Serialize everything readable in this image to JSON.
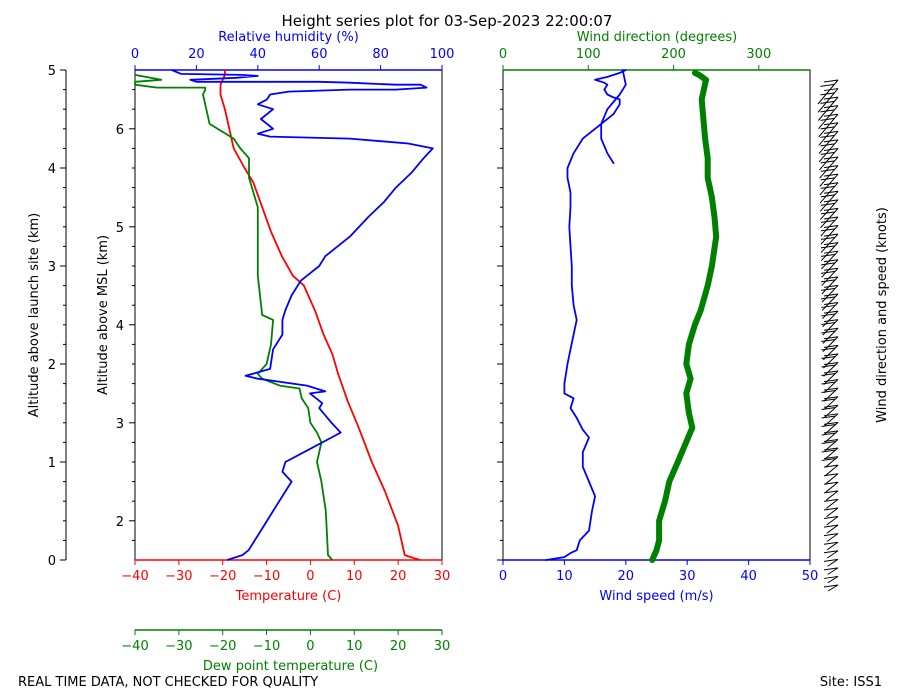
{
  "title": "Height series plot for 03-Sep-2023 22:00:07",
  "footer": {
    "notice": "REAL TIME DATA, NOT CHECKED FOR QUALITY",
    "site": "Site: ISS1"
  },
  "colors": {
    "temperature": "#ff0000",
    "dewpoint": "#008000",
    "humidity": "#0000ff",
    "wind_speed": "#0000ff",
    "wind_dir": "#008000",
    "axis": "#000000",
    "barbs": "#000000"
  },
  "chart_data": [
    {
      "type": "line",
      "name": "thermo-panel",
      "left_axis": {
        "label": "Altitude above launch site (km)",
        "ticks": [
          "0",
          "1",
          "2",
          "3",
          "4",
          "5"
        ],
        "range": [
          0,
          5
        ]
      },
      "msl_axis": {
        "label": "Altitude above MSL (km)",
        "ticks": [
          "2",
          "3",
          "4",
          "5",
          "6"
        ],
        "range": [
          1.6,
          6.6
        ]
      },
      "temp_axis": {
        "label": "Temperature (C)",
        "ticks": [
          "−40",
          "−30",
          "−20",
          "−10",
          "0",
          "10",
          "20",
          "30"
        ],
        "range": [
          -40,
          30
        ]
      },
      "dew_axis": {
        "label": "Dew point temperature (C)",
        "ticks": [
          "−40",
          "−30",
          "−20",
          "−10",
          "0",
          "10",
          "20",
          "30"
        ],
        "range": [
          -40,
          30
        ]
      },
      "rh_axis": {
        "label": "Relative humidity (%)",
        "ticks": [
          "0",
          "20",
          "40",
          "60",
          "80",
          "100"
        ],
        "range": [
          0,
          100
        ]
      },
      "series": [
        {
          "name": "Temperature",
          "axis": "temp",
          "points": [
            [
              25,
              0
            ],
            [
              23.5,
              0.02
            ],
            [
              21.5,
              0.05
            ],
            [
              20,
              0.35
            ],
            [
              17,
              0.7
            ],
            [
              14,
              1.0
            ],
            [
              11,
              1.35
            ],
            [
              8.5,
              1.62
            ],
            [
              6.3,
              1.9
            ],
            [
              5,
              2.1
            ],
            [
              3,
              2.3
            ],
            [
              1,
              2.55
            ],
            [
              -1.5,
              2.8
            ],
            [
              -4,
              2.9
            ],
            [
              -6.5,
              3.1
            ],
            [
              -9,
              3.35
            ],
            [
              -11,
              3.6
            ],
            [
              -13,
              3.85
            ],
            [
              -15,
              4.0
            ],
            [
              -17.5,
              4.2
            ],
            [
              -18.5,
              4.4
            ],
            [
              -19.5,
              4.6
            ],
            [
              -20.5,
              4.75
            ],
            [
              -20.5,
              4.85
            ],
            [
              -19.5,
              4.95
            ],
            [
              -19.5,
              5.0
            ]
          ]
        },
        {
          "name": "Dew point",
          "axis": "dew",
          "points": [
            [
              5,
              0
            ],
            [
              4,
              0.05
            ],
            [
              3.5,
              0.5
            ],
            [
              2.5,
              0.8
            ],
            [
              1.5,
              1.0
            ],
            [
              2.5,
              1.2
            ],
            [
              1.5,
              1.3
            ],
            [
              0,
              1.4
            ],
            [
              -0.5,
              1.55
            ],
            [
              -2,
              1.65
            ],
            [
              -2.5,
              1.75
            ],
            [
              -7,
              1.78
            ],
            [
              -11,
              1.85
            ],
            [
              -12,
              1.9
            ],
            [
              -10,
              2.0
            ],
            [
              -9,
              2.2
            ],
            [
              -8.5,
              2.45
            ],
            [
              -11,
              2.5
            ],
            [
              -11.5,
              2.7
            ],
            [
              -12,
              2.9
            ],
            [
              -12,
              3.2
            ],
            [
              -12,
              3.4
            ],
            [
              -12,
              3.6
            ],
            [
              -14,
              3.9
            ],
            [
              -14,
              4.1
            ],
            [
              -16,
              4.2
            ],
            [
              -17.5,
              4.3
            ],
            [
              -23,
              4.45
            ],
            [
              -23.5,
              4.55
            ],
            [
              -24,
              4.65
            ],
            [
              -24.5,
              4.75
            ],
            [
              -24,
              4.8
            ],
            [
              -24,
              4.82
            ],
            [
              -35,
              4.82
            ],
            [
              -40,
              4.85
            ],
            [
              -40,
              4.88
            ],
            [
              -34,
              4.9
            ],
            [
              -40,
              4.95
            ]
          ]
        },
        {
          "name": "Relative humidity",
          "axis": "rh",
          "points": [
            [
              30,
              0
            ],
            [
              35,
              0.05
            ],
            [
              37,
              0.1
            ],
            [
              41,
              0.3
            ],
            [
              45,
              0.5
            ],
            [
              49,
              0.7
            ],
            [
              51,
              0.8
            ],
            [
              48,
              0.9
            ],
            [
              49,
              1.0
            ],
            [
              55,
              1.1
            ],
            [
              64,
              1.25
            ],
            [
              67,
              1.3
            ],
            [
              64,
              1.4
            ],
            [
              60,
              1.55
            ],
            [
              61,
              1.6
            ],
            [
              57,
              1.7
            ],
            [
              62,
              1.72
            ],
            [
              56,
              1.78
            ],
            [
              40,
              1.85
            ],
            [
              36,
              1.88
            ],
            [
              44,
              1.95
            ],
            [
              45,
              2.15
            ],
            [
              48,
              2.3
            ],
            [
              48,
              2.45
            ],
            [
              49,
              2.55
            ],
            [
              51,
              2.7
            ],
            [
              54,
              2.85
            ],
            [
              60,
              3.0
            ],
            [
              62,
              3.1
            ],
            [
              70,
              3.3
            ],
            [
              76,
              3.5
            ],
            [
              81,
              3.65
            ],
            [
              85,
              3.8
            ],
            [
              90,
              3.95
            ],
            [
              94,
              4.1
            ],
            [
              97,
              4.2
            ],
            [
              89,
              4.25
            ],
            [
              70,
              4.3
            ],
            [
              44,
              4.32
            ],
            [
              40,
              4.35
            ],
            [
              45,
              4.4
            ],
            [
              41,
              4.5
            ],
            [
              45,
              4.6
            ],
            [
              40,
              4.65
            ],
            [
              43,
              4.7
            ],
            [
              44,
              4.75
            ],
            [
              50,
              4.78
            ],
            [
              70,
              4.8
            ],
            [
              85,
              4.8
            ],
            [
              95,
              4.82
            ],
            [
              93,
              4.85
            ],
            [
              85,
              4.85
            ],
            [
              70,
              4.87
            ],
            [
              60,
              4.88
            ],
            [
              20,
              4.88
            ],
            [
              18,
              4.9
            ],
            [
              33,
              4.92
            ],
            [
              40,
              4.94
            ],
            [
              35,
              4.95
            ],
            [
              15,
              4.96
            ],
            [
              12,
              5.0
            ]
          ]
        }
      ]
    },
    {
      "type": "line",
      "name": "wind-panel",
      "speed_axis": {
        "label": "Wind speed (m/s)",
        "ticks": [
          "0",
          "10",
          "20",
          "30",
          "40",
          "50"
        ],
        "range": [
          0,
          50
        ]
      },
      "dir_axis": {
        "label": "Wind direction (degrees)",
        "ticks": [
          "0",
          "100",
          "200",
          "300"
        ],
        "range": [
          0,
          360
        ]
      },
      "series": [
        {
          "name": "Wind speed",
          "axis": "speed",
          "points": [
            [
              7,
              0
            ],
            [
              10,
              0.03
            ],
            [
              11,
              0.07
            ],
            [
              12,
              0.1
            ],
            [
              12.5,
              0.2
            ],
            [
              14,
              0.3
            ],
            [
              14.5,
              0.5
            ],
            [
              15,
              0.65
            ],
            [
              14,
              0.8
            ],
            [
              13,
              0.95
            ],
            [
              13,
              1.1
            ],
            [
              14,
              1.25
            ],
            [
              13,
              1.33
            ],
            [
              12,
              1.45
            ],
            [
              11,
              1.55
            ],
            [
              11.5,
              1.65
            ],
            [
              10,
              1.7
            ],
            [
              10,
              1.8
            ],
            [
              10.5,
              2.0
            ],
            [
              11,
              2.15
            ],
            [
              11.5,
              2.3
            ],
            [
              12,
              2.45
            ],
            [
              11.5,
              2.6
            ],
            [
              11.2,
              2.8
            ],
            [
              11.2,
              3.0
            ],
            [
              11,
              3.2
            ],
            [
              10.8,
              3.4
            ],
            [
              11,
              3.6
            ],
            [
              11,
              3.75
            ],
            [
              10.5,
              3.9
            ],
            [
              10.5,
              4.0
            ],
            [
              11.5,
              4.15
            ],
            [
              13,
              4.3
            ],
            [
              16,
              4.45
            ],
            [
              18,
              4.55
            ],
            [
              19,
              4.65
            ],
            [
              19,
              4.7
            ],
            [
              18,
              4.72
            ],
            [
              17,
              4.75
            ],
            [
              16.5,
              4.8
            ],
            [
              17,
              4.85
            ],
            [
              16.5,
              4.87
            ],
            [
              15,
              4.9
            ],
            [
              17,
              4.93
            ],
            [
              19,
              4.97
            ],
            [
              20,
              5.0
            ]
          ]
        },
        {
          "name": "Wind speed upper branch",
          "axis": "speed",
          "points": [
            [
              18,
              4.05
            ],
            [
              17,
              4.15
            ],
            [
              16,
              4.3
            ],
            [
              16,
              4.45
            ],
            [
              17,
              4.6
            ],
            [
              19,
              4.75
            ],
            [
              20,
              4.85
            ],
            [
              19.5,
              5.0
            ]
          ]
        },
        {
          "name": "Wind direction",
          "axis": "dir",
          "points": [
            [
              175,
              0
            ],
            [
              180,
              0.1
            ],
            [
              183,
              0.2
            ],
            [
              183,
              0.4
            ],
            [
              190,
              0.6
            ],
            [
              195,
              0.8
            ],
            [
              205,
              1.0
            ],
            [
              222,
              1.35
            ],
            [
              218,
              1.5
            ],
            [
              215,
              1.7
            ],
            [
              220,
              1.85
            ],
            [
              215,
              2.0
            ],
            [
              218,
              2.2
            ],
            [
              225,
              2.4
            ],
            [
              232,
              2.55
            ],
            [
              240,
              2.8
            ],
            [
              245,
              3.0
            ],
            [
              250,
              3.3
            ],
            [
              248,
              3.5
            ],
            [
              245,
              3.7
            ],
            [
              240,
              3.9
            ],
            [
              240,
              4.1
            ],
            [
              237,
              4.3
            ],
            [
              235,
              4.5
            ],
            [
              233,
              4.7
            ],
            [
              238,
              4.9
            ],
            [
              230,
              4.95
            ],
            [
              225,
              4.97
            ]
          ]
        }
      ]
    }
  ],
  "barbs": {
    "label": "Wind direction and speed (knots)",
    "count": 60
  }
}
